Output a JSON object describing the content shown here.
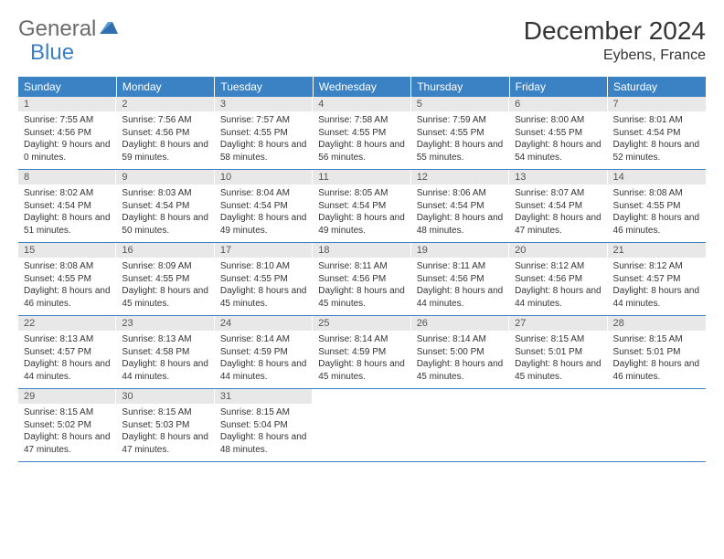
{
  "logo": {
    "general": "General",
    "blue": "Blue"
  },
  "title": "December 2024",
  "location": "Eybens, France",
  "colors": {
    "header_bg": "#3b82c4",
    "header_text": "#ffffff",
    "daynum_bg": "#e8e8e8",
    "row_border": "#3b82c4",
    "logo_gray": "#6b6b6b",
    "logo_blue": "#3b7fc4"
  },
  "day_headers": [
    "Sunday",
    "Monday",
    "Tuesday",
    "Wednesday",
    "Thursday",
    "Friday",
    "Saturday"
  ],
  "weeks": [
    [
      {
        "n": "1",
        "sr": "7:55 AM",
        "ss": "4:56 PM",
        "dl": "9 hours and 0 minutes."
      },
      {
        "n": "2",
        "sr": "7:56 AM",
        "ss": "4:56 PM",
        "dl": "8 hours and 59 minutes."
      },
      {
        "n": "3",
        "sr": "7:57 AM",
        "ss": "4:55 PM",
        "dl": "8 hours and 58 minutes."
      },
      {
        "n": "4",
        "sr": "7:58 AM",
        "ss": "4:55 PM",
        "dl": "8 hours and 56 minutes."
      },
      {
        "n": "5",
        "sr": "7:59 AM",
        "ss": "4:55 PM",
        "dl": "8 hours and 55 minutes."
      },
      {
        "n": "6",
        "sr": "8:00 AM",
        "ss": "4:55 PM",
        "dl": "8 hours and 54 minutes."
      },
      {
        "n": "7",
        "sr": "8:01 AM",
        "ss": "4:54 PM",
        "dl": "8 hours and 52 minutes."
      }
    ],
    [
      {
        "n": "8",
        "sr": "8:02 AM",
        "ss": "4:54 PM",
        "dl": "8 hours and 51 minutes."
      },
      {
        "n": "9",
        "sr": "8:03 AM",
        "ss": "4:54 PM",
        "dl": "8 hours and 50 minutes."
      },
      {
        "n": "10",
        "sr": "8:04 AM",
        "ss": "4:54 PM",
        "dl": "8 hours and 49 minutes."
      },
      {
        "n": "11",
        "sr": "8:05 AM",
        "ss": "4:54 PM",
        "dl": "8 hours and 49 minutes."
      },
      {
        "n": "12",
        "sr": "8:06 AM",
        "ss": "4:54 PM",
        "dl": "8 hours and 48 minutes."
      },
      {
        "n": "13",
        "sr": "8:07 AM",
        "ss": "4:54 PM",
        "dl": "8 hours and 47 minutes."
      },
      {
        "n": "14",
        "sr": "8:08 AM",
        "ss": "4:55 PM",
        "dl": "8 hours and 46 minutes."
      }
    ],
    [
      {
        "n": "15",
        "sr": "8:08 AM",
        "ss": "4:55 PM",
        "dl": "8 hours and 46 minutes."
      },
      {
        "n": "16",
        "sr": "8:09 AM",
        "ss": "4:55 PM",
        "dl": "8 hours and 45 minutes."
      },
      {
        "n": "17",
        "sr": "8:10 AM",
        "ss": "4:55 PM",
        "dl": "8 hours and 45 minutes."
      },
      {
        "n": "18",
        "sr": "8:11 AM",
        "ss": "4:56 PM",
        "dl": "8 hours and 45 minutes."
      },
      {
        "n": "19",
        "sr": "8:11 AM",
        "ss": "4:56 PM",
        "dl": "8 hours and 44 minutes."
      },
      {
        "n": "20",
        "sr": "8:12 AM",
        "ss": "4:56 PM",
        "dl": "8 hours and 44 minutes."
      },
      {
        "n": "21",
        "sr": "8:12 AM",
        "ss": "4:57 PM",
        "dl": "8 hours and 44 minutes."
      }
    ],
    [
      {
        "n": "22",
        "sr": "8:13 AM",
        "ss": "4:57 PM",
        "dl": "8 hours and 44 minutes."
      },
      {
        "n": "23",
        "sr": "8:13 AM",
        "ss": "4:58 PM",
        "dl": "8 hours and 44 minutes."
      },
      {
        "n": "24",
        "sr": "8:14 AM",
        "ss": "4:59 PM",
        "dl": "8 hours and 44 minutes."
      },
      {
        "n": "25",
        "sr": "8:14 AM",
        "ss": "4:59 PM",
        "dl": "8 hours and 45 minutes."
      },
      {
        "n": "26",
        "sr": "8:14 AM",
        "ss": "5:00 PM",
        "dl": "8 hours and 45 minutes."
      },
      {
        "n": "27",
        "sr": "8:15 AM",
        "ss": "5:01 PM",
        "dl": "8 hours and 45 minutes."
      },
      {
        "n": "28",
        "sr": "8:15 AM",
        "ss": "5:01 PM",
        "dl": "8 hours and 46 minutes."
      }
    ],
    [
      {
        "n": "29",
        "sr": "8:15 AM",
        "ss": "5:02 PM",
        "dl": "8 hours and 47 minutes."
      },
      {
        "n": "30",
        "sr": "8:15 AM",
        "ss": "5:03 PM",
        "dl": "8 hours and 47 minutes."
      },
      {
        "n": "31",
        "sr": "8:15 AM",
        "ss": "5:04 PM",
        "dl": "8 hours and 48 minutes."
      },
      null,
      null,
      null,
      null
    ]
  ],
  "labels": {
    "sunrise": "Sunrise: ",
    "sunset": "Sunset: ",
    "daylight": "Daylight: "
  }
}
